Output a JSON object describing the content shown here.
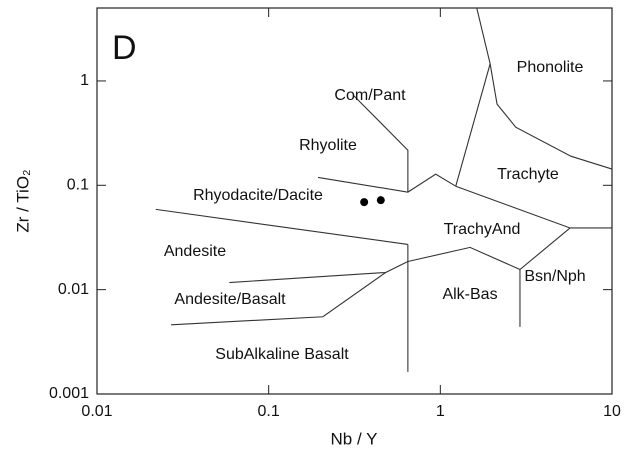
{
  "chart_data": {
    "type": "scatter",
    "annotation": "D",
    "xlabel": "Nb / Y",
    "ylabel": "Zr / TiO₂",
    "xscale": "log",
    "yscale": "log",
    "xlim": [
      0.01,
      10
    ],
    "ylim": [
      0.001,
      5
    ],
    "xticks": [
      0.01,
      0.1,
      1,
      10
    ],
    "yticks": [
      0.001,
      0.01,
      0.1,
      1
    ],
    "series": [
      {
        "color": "#000000",
        "x": [
          0.36,
          0.45
        ],
        "values": [
          0.069,
          0.072
        ]
      }
    ],
    "fields": [
      "Com/Pant",
      "Phonolite",
      "Rhyolite",
      "Trachyte",
      "Rhyodacite/Dacite",
      "TrachyAnd",
      "Andesite",
      "Bsn/Nph",
      "Alk-Bas",
      "Andesite/Basalt",
      "SubAlkaline Basalt"
    ],
    "boundaries": [
      {
        "x": [
          0.314,
          0.647,
          0.647
        ],
        "y": [
          0.72,
          0.217,
          0.086
        ]
      },
      {
        "x": [
          0.194,
          0.647,
          0.94,
          1.23
        ],
        "y": [
          0.119,
          0.086,
          0.128,
          0.098
        ]
      },
      {
        "x": [
          1.63,
          1.95,
          2.14,
          2.75,
          5.76,
          10
        ],
        "y": [
          5,
          1.46,
          0.6,
          0.36,
          0.19,
          0.143
        ]
      },
      {
        "x": [
          1.95,
          1.23
        ],
        "y": [
          1.46,
          0.098
        ]
      },
      {
        "x": [
          1.23,
          5.7,
          10
        ],
        "y": [
          0.098,
          0.039,
          0.039
        ]
      },
      {
        "x": [
          0.022,
          0.647
        ],
        "y": [
          0.0588,
          0.0271
        ]
      },
      {
        "x": [
          0.647,
          0.647
        ],
        "y": [
          0.0271,
          0.00163
        ]
      },
      {
        "x": [
          0.647,
          1.49,
          2.91,
          5.7
        ],
        "y": [
          0.0186,
          0.0254,
          0.0156,
          0.039
        ]
      },
      {
        "x": [
          2.91,
          2.91
        ],
        "y": [
          0.0156,
          0.0044
        ]
      },
      {
        "x": [
          0.059,
          0.48
        ],
        "y": [
          0.0117,
          0.0146
        ]
      },
      {
        "x": [
          0.027,
          0.207,
          0.48,
          0.647
        ],
        "y": [
          0.0046,
          0.0055,
          0.0146,
          0.0186
        ]
      }
    ]
  }
}
